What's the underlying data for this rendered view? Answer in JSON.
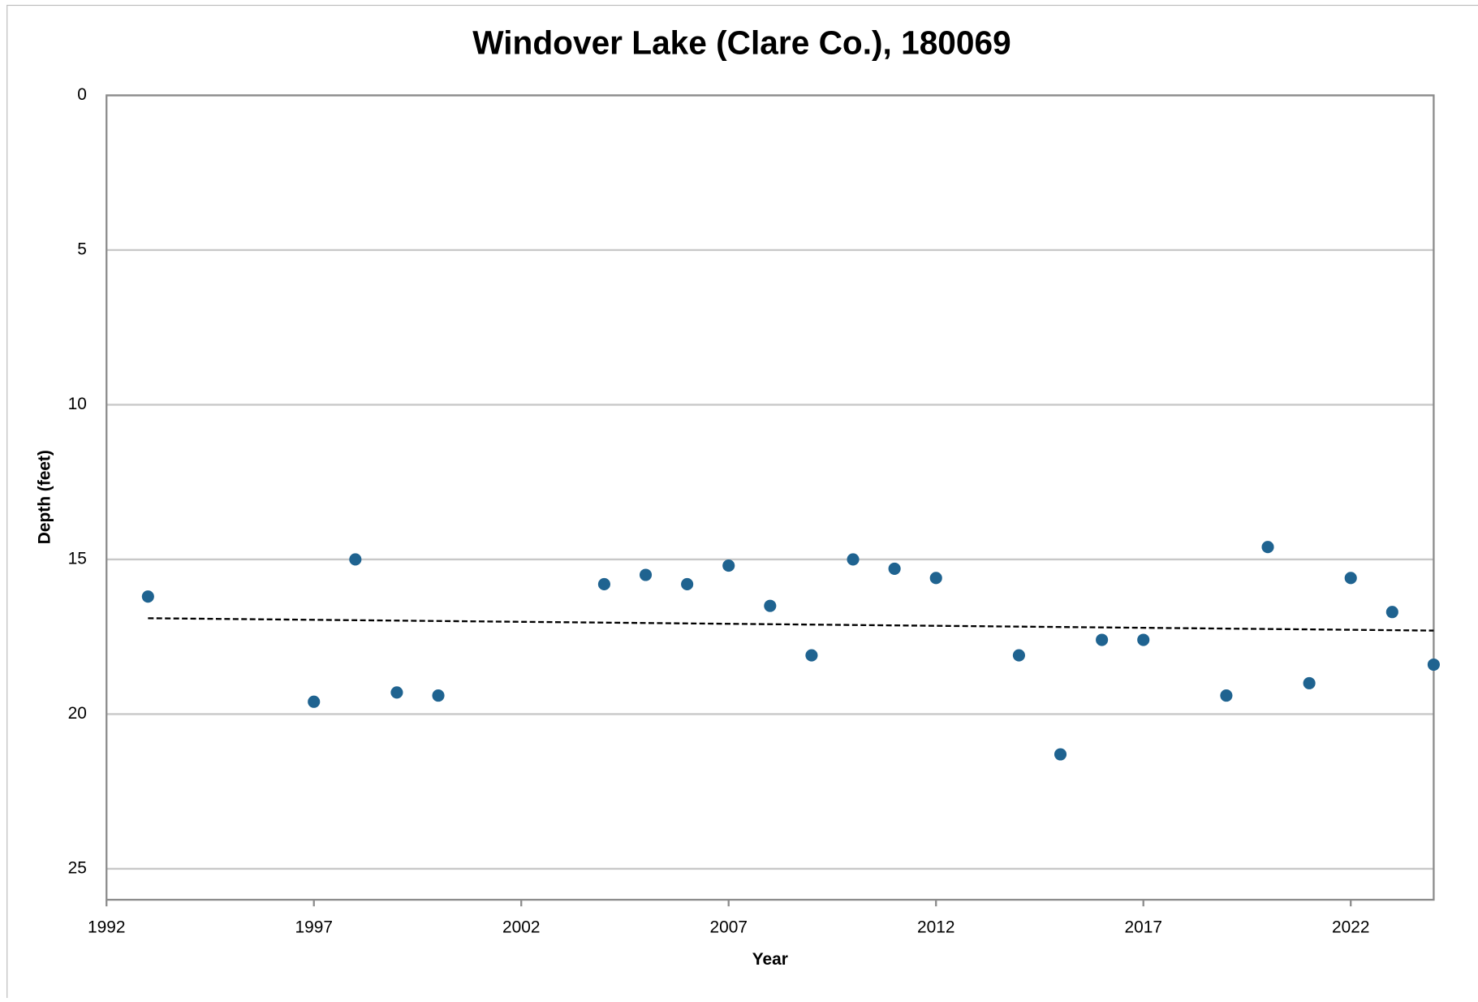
{
  "chart_data": {
    "type": "scatter",
    "title": "Windover Lake (Clare Co.), 180069",
    "x_label": "Year",
    "y_label": "Depth (feet)",
    "x": [
      1993,
      1997,
      1998,
      1999,
      2000,
      2004,
      2005,
      2006,
      2007,
      2008,
      2009,
      2010,
      2011,
      2012,
      2014,
      2015,
      2016,
      2017,
      2019,
      2020,
      2021,
      2022,
      2023,
      2024
    ],
    "values": [
      16.2,
      19.6,
      15.0,
      19.3,
      19.4,
      15.8,
      15.5,
      15.8,
      15.2,
      16.5,
      18.1,
      15.0,
      15.3,
      15.6,
      18.1,
      21.3,
      17.6,
      17.6,
      19.4,
      14.6,
      19.0,
      15.6,
      16.7,
      18.4
    ],
    "color": "#1f6390",
    "trend": {
      "x": [
        1993,
        2024
      ],
      "values": [
        16.9,
        17.3
      ],
      "color": "#000000"
    },
    "xlim": [
      1992,
      2024
    ],
    "xticks": [
      1992,
      1997,
      2002,
      2007,
      2012,
      2017,
      2022
    ],
    "ylim": [
      0,
      26
    ],
    "yticks": [
      0,
      5,
      10,
      15,
      20,
      25
    ],
    "y_inverted": true,
    "grid": true
  }
}
